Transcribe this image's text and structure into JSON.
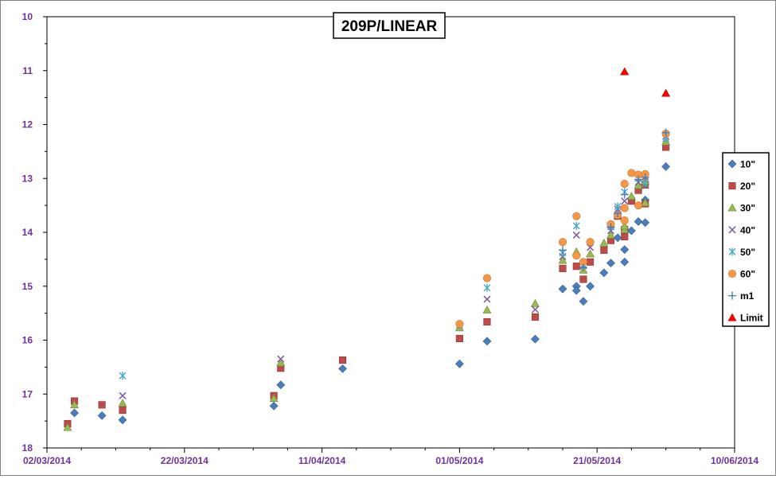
{
  "chart_data": {
    "type": "scatter",
    "title": "209P/LINEAR",
    "xlabel": "",
    "ylabel": "",
    "x_range": [
      "2014-03-02",
      "2014-06-10"
    ],
    "x_ticks": [
      "02/03/2014",
      "22/03/2014",
      "11/04/2014",
      "01/05/2014",
      "21/05/2014",
      "10/06/2014"
    ],
    "y_range": [
      10,
      18
    ],
    "y_inverted": true,
    "y_ticks": [
      "10",
      "11",
      "12",
      "13",
      "14",
      "15",
      "16",
      "17",
      "18"
    ],
    "grid": false,
    "legend_position": "right",
    "series": [
      {
        "name": "10\"",
        "marker": "diamond",
        "color": "#4a7ebb",
        "points": [
          [
            "2014-03-06",
            17.35
          ],
          [
            "2014-03-10",
            17.4
          ],
          [
            "2014-03-13",
            17.48
          ],
          [
            "2014-04-04",
            17.22
          ],
          [
            "2014-04-05",
            16.83
          ],
          [
            "2014-04-14",
            16.53
          ],
          [
            "2014-05-01",
            16.44
          ],
          [
            "2014-05-05",
            16.02
          ],
          [
            "2014-05-12",
            15.98
          ],
          [
            "2014-05-16",
            15.05
          ],
          [
            "2014-05-18",
            15.0
          ],
          [
            "2014-05-18",
            15.08
          ],
          [
            "2014-05-19",
            15.28
          ],
          [
            "2014-05-20",
            15.0
          ],
          [
            "2014-05-22",
            14.75
          ],
          [
            "2014-05-23",
            14.57
          ],
          [
            "2014-05-24",
            14.1
          ],
          [
            "2014-05-25",
            14.55
          ],
          [
            "2014-05-25",
            14.32
          ],
          [
            "2014-05-26",
            13.97
          ],
          [
            "2014-05-27",
            13.8
          ],
          [
            "2014-05-28",
            13.82
          ],
          [
            "2014-05-28",
            13.4
          ],
          [
            "2014-05-31",
            12.78
          ]
        ]
      },
      {
        "name": "20\"",
        "marker": "square",
        "color": "#be4b48",
        "points": [
          [
            "2014-03-05",
            17.55
          ],
          [
            "2014-03-06",
            17.13
          ],
          [
            "2014-03-10",
            17.2
          ],
          [
            "2014-03-13",
            17.3
          ],
          [
            "2014-04-04",
            17.03
          ],
          [
            "2014-04-05",
            16.52
          ],
          [
            "2014-04-14",
            16.37
          ],
          [
            "2014-05-01",
            15.97
          ],
          [
            "2014-05-05",
            15.66
          ],
          [
            "2014-05-12",
            15.57
          ],
          [
            "2014-05-16",
            14.67
          ],
          [
            "2014-05-18",
            14.63
          ],
          [
            "2014-05-19",
            14.87
          ],
          [
            "2014-05-20",
            14.55
          ],
          [
            "2014-05-22",
            14.33
          ],
          [
            "2014-05-23",
            14.15
          ],
          [
            "2014-05-24",
            13.7
          ],
          [
            "2014-05-25",
            14.08
          ],
          [
            "2014-05-25",
            13.95
          ],
          [
            "2014-05-26",
            13.42
          ],
          [
            "2014-05-27",
            13.22
          ],
          [
            "2014-05-28",
            13.47
          ],
          [
            "2014-05-28",
            13.12
          ],
          [
            "2014-05-31",
            12.42
          ]
        ]
      },
      {
        "name": "30\"",
        "marker": "triangle",
        "color": "#98b954",
        "points": [
          [
            "2014-03-05",
            17.62
          ],
          [
            "2014-03-06",
            17.2
          ],
          [
            "2014-03-13",
            17.17
          ],
          [
            "2014-04-04",
            17.08
          ],
          [
            "2014-04-05",
            16.42
          ],
          [
            "2014-05-01",
            15.77
          ],
          [
            "2014-05-05",
            15.44
          ],
          [
            "2014-05-12",
            15.32
          ],
          [
            "2014-05-16",
            14.52
          ],
          [
            "2014-05-18",
            14.36
          ],
          [
            "2014-05-19",
            14.7
          ],
          [
            "2014-05-20",
            14.4
          ],
          [
            "2014-05-22",
            14.2
          ],
          [
            "2014-05-23",
            14.05
          ],
          [
            "2014-05-24",
            13.68
          ],
          [
            "2014-05-25",
            13.95
          ],
          [
            "2014-05-25",
            13.88
          ],
          [
            "2014-05-26",
            13.33
          ],
          [
            "2014-05-27",
            13.13
          ],
          [
            "2014-05-28",
            13.45
          ],
          [
            "2014-05-28",
            13.05
          ],
          [
            "2014-05-31",
            12.32
          ]
        ]
      },
      {
        "name": "40\"",
        "marker": "x",
        "color": "#7d60a0",
        "points": [
          [
            "2014-03-13",
            17.03
          ],
          [
            "2014-04-05",
            16.35
          ],
          [
            "2014-05-05",
            15.24
          ],
          [
            "2014-05-12",
            15.43
          ],
          [
            "2014-05-16",
            14.45
          ],
          [
            "2014-05-18",
            14.05
          ],
          [
            "2014-05-19",
            14.62
          ],
          [
            "2014-05-20",
            14.28
          ],
          [
            "2014-05-23",
            13.97
          ],
          [
            "2014-05-24",
            13.57
          ],
          [
            "2014-05-25",
            13.42
          ],
          [
            "2014-05-27",
            13.07
          ],
          [
            "2014-05-28",
            12.97
          ],
          [
            "2014-05-31",
            12.22
          ]
        ]
      },
      {
        "name": "50\"",
        "marker": "star",
        "color": "#46aac5",
        "points": [
          [
            "2014-03-13",
            16.66
          ],
          [
            "2014-05-01",
            15.72
          ],
          [
            "2014-05-05",
            15.03
          ],
          [
            "2014-05-16",
            14.38
          ],
          [
            "2014-05-18",
            13.88
          ],
          [
            "2014-05-19",
            14.6
          ],
          [
            "2014-05-23",
            13.9
          ],
          [
            "2014-05-24",
            13.52
          ],
          [
            "2014-05-25",
            13.25
          ],
          [
            "2014-05-27",
            13.0
          ],
          [
            "2014-05-28",
            13.1
          ],
          [
            "2014-05-31",
            12.26
          ]
        ]
      },
      {
        "name": "60\"",
        "marker": "circle",
        "color": "#f79646",
        "points": [
          [
            "2014-05-01",
            15.7
          ],
          [
            "2014-05-05",
            14.85
          ],
          [
            "2014-05-16",
            14.18
          ],
          [
            "2014-05-18",
            13.7
          ],
          [
            "2014-05-18",
            14.43
          ],
          [
            "2014-05-19",
            14.55
          ],
          [
            "2014-05-20",
            14.18
          ],
          [
            "2014-05-23",
            13.85
          ],
          [
            "2014-05-24",
            13.68
          ],
          [
            "2014-05-25",
            13.1
          ],
          [
            "2014-05-25",
            13.55
          ],
          [
            "2014-05-25",
            13.78
          ],
          [
            "2014-05-26",
            12.9
          ],
          [
            "2014-05-27",
            12.93
          ],
          [
            "2014-05-27",
            13.5
          ],
          [
            "2014-05-28",
            12.92
          ],
          [
            "2014-05-31",
            12.17
          ]
        ]
      },
      {
        "name": "m1",
        "marker": "plus",
        "color": "#4a7ebb",
        "points": [
          [
            "2014-05-16",
            14.33
          ],
          [
            "2014-05-19",
            14.65
          ],
          [
            "2014-05-23",
            13.9
          ],
          [
            "2014-05-24",
            13.65
          ],
          [
            "2014-05-25",
            13.3
          ],
          [
            "2014-05-27",
            13.02
          ],
          [
            "2014-05-28",
            12.98
          ],
          [
            "2014-05-31",
            12.15
          ]
        ]
      },
      {
        "name": "Limit",
        "marker": "triangle",
        "color": "#ff0000",
        "points": [
          [
            "2014-05-25",
            11.02
          ],
          [
            "2014-05-31",
            11.42
          ]
        ]
      }
    ]
  }
}
